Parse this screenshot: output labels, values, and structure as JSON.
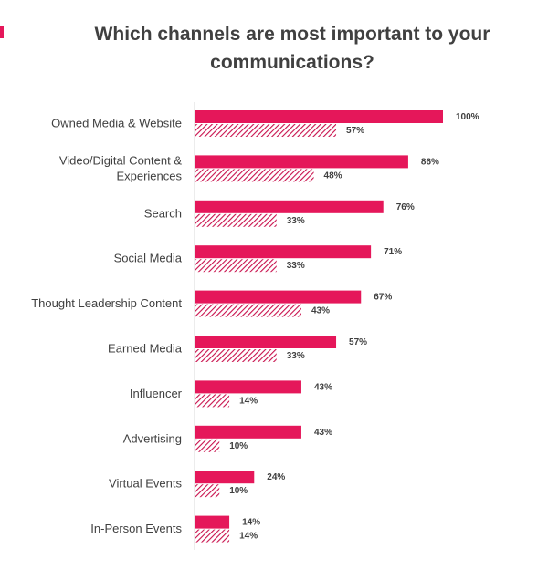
{
  "chart_data": {
    "type": "bar",
    "orientation": "horizontal",
    "title": "Which channels are most important to your communications?",
    "categories": [
      "Owned Media & Website",
      "Video/Digital Content & Experiences",
      "Search",
      "Social Media",
      "Thought Leadership Content",
      "Earned Media",
      "Influencer",
      "Advertising",
      "Virtual Events",
      "In-Person Events"
    ],
    "series": [
      {
        "values": [
          100,
          86,
          76,
          71,
          67,
          57,
          43,
          43,
          24,
          14
        ],
        "color": "#e5175a",
        "fill": "solid"
      },
      {
        "values": [
          57,
          48,
          33,
          33,
          43,
          33,
          14,
          10,
          10,
          14
        ],
        "color": "#c8104c",
        "fill": "hatched"
      }
    ],
    "value_labels": [
      [
        "100%",
        "86%",
        "76%",
        "71%",
        "67%",
        "57%",
        "43%",
        "43%",
        "24%",
        "14%"
      ],
      [
        "57%",
        "48%",
        "33%",
        "33%",
        "43%",
        "33%",
        "14%",
        "10%",
        "10%",
        "14%"
      ]
    ],
    "xlim": [
      0,
      100
    ],
    "grid": false,
    "legend": "none"
  }
}
